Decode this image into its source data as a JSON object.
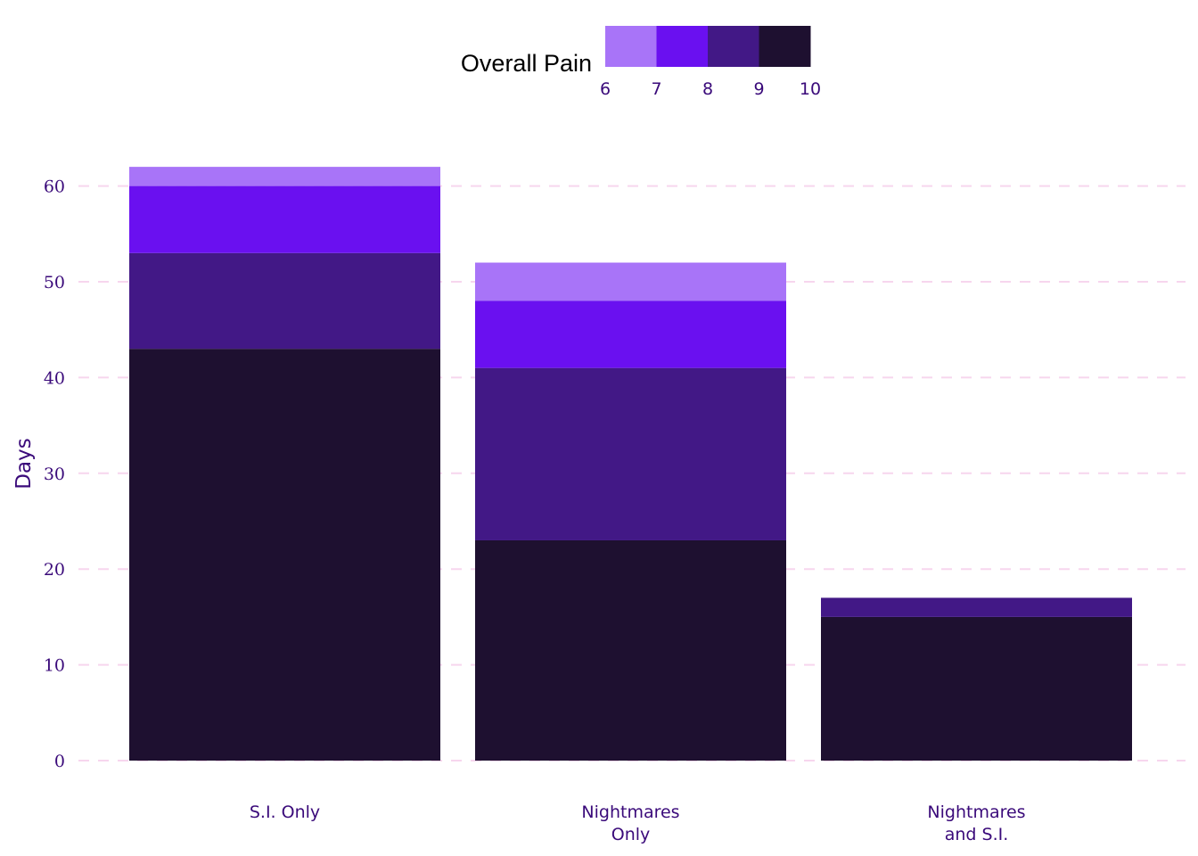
{
  "chart_data": {
    "type": "bar",
    "stacked": true,
    "categories": [
      [
        "S.I. Only"
      ],
      [
        "Nightmares",
        "Only"
      ],
      [
        "Nightmares",
        "and S.I."
      ]
    ],
    "series": [
      {
        "name": "10",
        "color": "#1e1030",
        "values": [
          43,
          23,
          15
        ]
      },
      {
        "name": "9",
        "color": "#421886",
        "values": [
          10,
          18,
          2
        ]
      },
      {
        "name": "8",
        "color": "#6a10f0",
        "values": [
          7,
          7,
          0
        ]
      },
      {
        "name": "7",
        "color": "#a874f8",
        "values": [
          2,
          4,
          0
        ]
      }
    ],
    "legend": {
      "title": "Overall Pain",
      "placement": "top",
      "colors": [
        "#a874f8",
        "#6a10f0",
        "#421886",
        "#1e1030"
      ],
      "labels": [
        "6",
        "7",
        "8",
        "9",
        "10"
      ]
    },
    "ylabel": "Days",
    "xlabel": "",
    "ylim": [
      0,
      62
    ],
    "yticks": [
      0,
      10,
      20,
      30,
      40,
      50,
      60
    ],
    "grid": "horizontal-dashed"
  }
}
